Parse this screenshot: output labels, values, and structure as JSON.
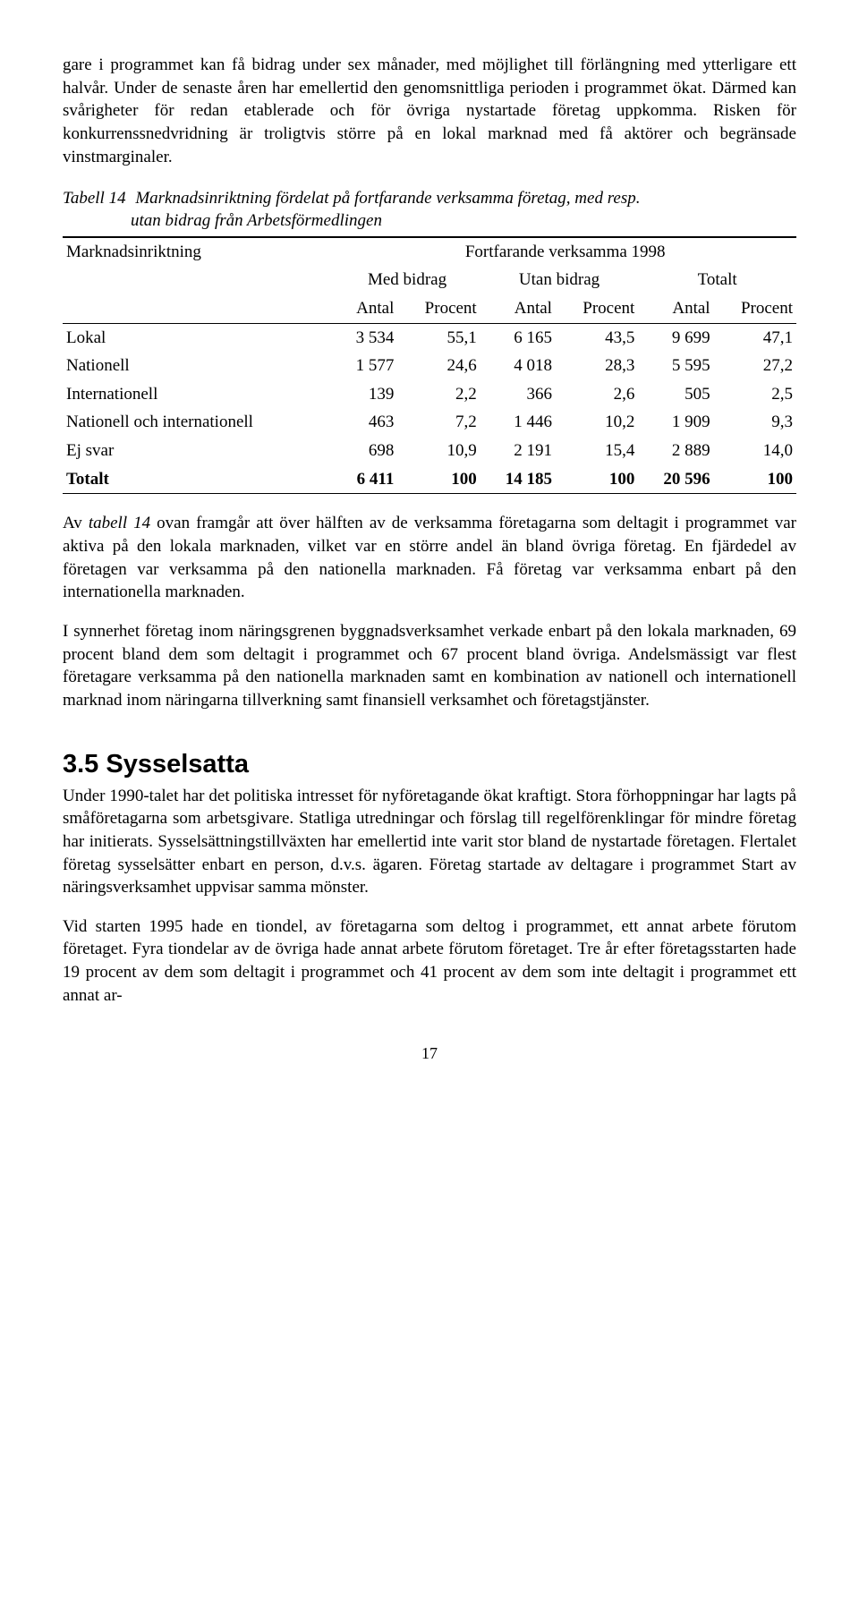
{
  "para1": "gare i programmet kan få bidrag under sex månader, med möjlighet till förlängning med ytterligare ett halvår. Under de senaste åren har emellertid den genomsnittliga perioden i programmet ökat. Därmed kan svårigheter för redan etablerade och för övriga nystartade företag uppkomma. Risken för konkurrenssnedvridning är troligtvis större på en lokal marknad med få aktörer och begränsade vinstmarginaler.",
  "tableCaption": {
    "label": "Tabell 14",
    "line1": "Marknadsinriktning fördelat på fortfarande verksamma företag, med resp.",
    "line2": "utan bidrag från Arbetsförmedlingen"
  },
  "table": {
    "colLabel": "Marknadsinriktning",
    "groupHeader": "Fortfarande verksamma 1998",
    "sub": {
      "c1": "Med bidrag",
      "c2": "Utan bidrag",
      "c3": "Totalt"
    },
    "cols": {
      "a": "Antal",
      "p": "Procent"
    },
    "rows": [
      {
        "label": "Lokal",
        "a1": "3 534",
        "p1": "55,1",
        "a2": "6 165",
        "p2": "43,5",
        "a3": "9 699",
        "p3": "47,1"
      },
      {
        "label": "Nationell",
        "a1": "1 577",
        "p1": "24,6",
        "a2": "4 018",
        "p2": "28,3",
        "a3": "5 595",
        "p3": "27,2"
      },
      {
        "label": "Internationell",
        "a1": "139",
        "p1": "2,2",
        "a2": "366",
        "p2": "2,6",
        "a3": "505",
        "p3": "2,5"
      },
      {
        "label": "Nationell och internationell",
        "a1": "463",
        "p1": "7,2",
        "a2": "1 446",
        "p2": "10,2",
        "a3": "1 909",
        "p3": "9,3"
      },
      {
        "label": "Ej svar",
        "a1": "698",
        "p1": "10,9",
        "a2": "2 191",
        "p2": "15,4",
        "a3": "2 889",
        "p3": "14,0"
      }
    ],
    "total": {
      "label": "Totalt",
      "a1": "6 411",
      "p1": "100",
      "a2": "14 185",
      "p2": "100",
      "a3": "20 596",
      "p3": "100"
    }
  },
  "para2a": "Av ",
  "para2italic": "tabell 14",
  "para2b": " ovan framgår att över hälften av de verksamma företagarna som deltagit i programmet var aktiva på den lokala marknaden, vilket var en större andel än bland övriga företag. En fjärdedel av företagen var verksamma på den nationella marknaden. Få företag var verksamma enbart på den internationella marknaden.",
  "para3": "I synnerhet företag inom näringsgrenen byggnadsverksamhet verkade enbart på den lokala marknaden, 69 procent bland dem som deltagit i programmet och 67 procent bland övriga. Andelsmässigt var flest företagare verksamma på den nationella marknaden samt en kombination av nationell och internationell marknad inom näringarna tillverkning samt finansiell verksamhet och företagstjänster.",
  "heading": "3.5   Sysselsatta",
  "para4": "Under 1990-talet har det politiska intresset för nyföretagande ökat kraftigt. Stora förhoppningar har lagts på småföretagarna som arbetsgivare. Statliga utredningar och förslag till regelförenklingar för mindre företag har initierats. Sysselsättningstillväxten har emellertid inte varit stor bland de nystartade företagen. Flertalet företag sysselsätter enbart en person, d.v.s. ägaren. Företag startade av deltagare i programmet Start av näringsverksamhet uppvisar samma mönster.",
  "para5": "Vid starten 1995 hade en tiondel, av företagarna som deltog i programmet, ett annat arbete förutom företaget. Fyra tiondelar av de övriga hade annat arbete förutom företaget. Tre år efter företagsstarten hade 19 procent av dem som deltagit i programmet och 41 procent av dem som inte deltagit i programmet ett annat ar-",
  "pageNumber": "17"
}
